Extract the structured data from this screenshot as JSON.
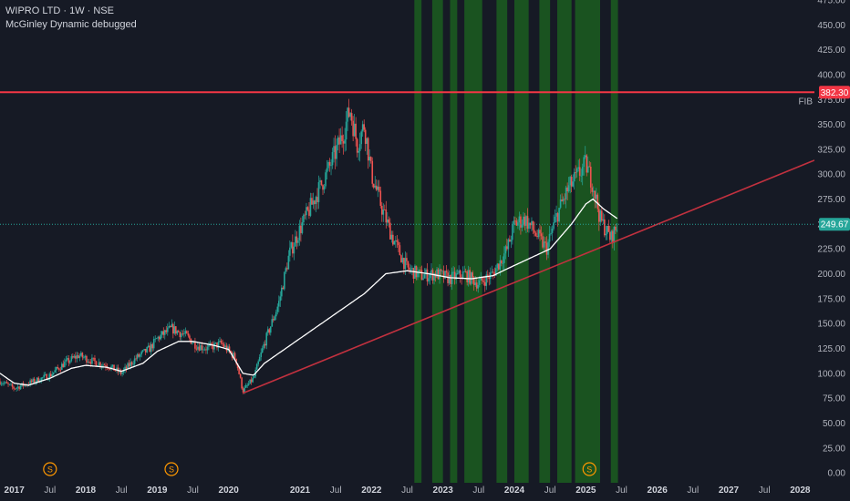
{
  "legend": {
    "symbol_line": "WIPRO LTD · 1W · NSE",
    "indicator": "McGinley Dynamic debugged"
  },
  "colors": {
    "background": "#161a25",
    "up": "#26a69a",
    "down": "#ef5350",
    "mcginley": "#ffffff",
    "trendline": "#c2313f",
    "fib_line": "#f23645",
    "shade": "#1b5e20",
    "price_line": "#26a69a",
    "dividend": "#ff9800"
  },
  "chart_data": {
    "type": "candlestick",
    "symbol": "WIPRO LTD",
    "interval": "1W",
    "exchange": "NSE",
    "ylim": [
      -10,
      475
    ],
    "y_ticks": [
      0,
      25,
      50,
      75,
      100,
      125,
      150,
      175,
      200,
      225,
      250,
      275,
      300,
      325,
      350,
      375,
      400,
      425,
      450,
      475
    ],
    "y_tick_labels": [
      "0.00",
      "25.00",
      "50.00",
      "75.00",
      "100.00",
      "125.00",
      "150.00",
      "175.00",
      "200.00",
      "225.00",
      "250.00",
      "275.00",
      "300.00",
      "325.00",
      "350.00",
      "375.00",
      "400.00",
      "425.00",
      "450.00",
      "475.00"
    ],
    "xlim": [
      2016.8,
      2028.2
    ],
    "x_ticks": [
      2017,
      2017.5,
      2018,
      2018.5,
      2019,
      2019.5,
      2020,
      2021,
      2021.5,
      2022,
      2022.5,
      2023,
      2023.5,
      2024,
      2024.5,
      2025,
      2025.5,
      2026,
      2026.5,
      2027,
      2027.5,
      2028
    ],
    "x_tick_labels": [
      "2017",
      "Jul",
      "2018",
      "Jul",
      "2019",
      "Jul",
      "2020",
      "2021",
      "Jul",
      "2022",
      "Jul",
      "2023",
      "Jul",
      "2024",
      "Jul",
      "2025",
      "Jul",
      "2026",
      "Jul",
      "2027",
      "Jul",
      "2028"
    ],
    "x_tick_year": [
      true,
      false,
      true,
      false,
      true,
      false,
      true,
      true,
      false,
      true,
      false,
      true,
      false,
      true,
      false,
      true,
      false,
      true,
      false,
      true,
      false,
      true
    ],
    "price_path": [
      [
        2016.8,
        92
      ],
      [
        2017.0,
        85
      ],
      [
        2017.2,
        90
      ],
      [
        2017.5,
        98
      ],
      [
        2017.7,
        110
      ],
      [
        2017.9,
        118
      ],
      [
        2018.1,
        112
      ],
      [
        2018.3,
        108
      ],
      [
        2018.5,
        100
      ],
      [
        2018.7,
        115
      ],
      [
        2018.9,
        125
      ],
      [
        2019.0,
        135
      ],
      [
        2019.2,
        145
      ],
      [
        2019.4,
        138
      ],
      [
        2019.55,
        128
      ],
      [
        2019.7,
        125
      ],
      [
        2019.9,
        130
      ],
      [
        2020.1,
        115
      ],
      [
        2020.2,
        82
      ],
      [
        2020.35,
        95
      ],
      [
        2020.5,
        130
      ],
      [
        2020.7,
        170
      ],
      [
        2020.85,
        220
      ],
      [
        2021.0,
        245
      ],
      [
        2021.2,
        275
      ],
      [
        2021.4,
        305
      ],
      [
        2021.6,
        340
      ],
      [
        2021.7,
        365
      ],
      [
        2021.8,
        330
      ],
      [
        2021.9,
        350
      ],
      [
        2022.0,
        300
      ],
      [
        2022.15,
        265
      ],
      [
        2022.3,
        235
      ],
      [
        2022.5,
        205
      ],
      [
        2022.7,
        198
      ],
      [
        2022.9,
        200
      ],
      [
        2023.1,
        195
      ],
      [
        2023.3,
        200
      ],
      [
        2023.5,
        190
      ],
      [
        2023.7,
        200
      ],
      [
        2023.9,
        225
      ],
      [
        2024.0,
        250
      ],
      [
        2024.15,
        255
      ],
      [
        2024.3,
        240
      ],
      [
        2024.45,
        225
      ],
      [
        2024.6,
        260
      ],
      [
        2024.75,
        285
      ],
      [
        2024.9,
        300
      ],
      [
        2025.0,
        310
      ],
      [
        2025.1,
        290
      ],
      [
        2025.2,
        255
      ],
      [
        2025.35,
        235
      ],
      [
        2025.45,
        249.67
      ]
    ],
    "mcginley_dynamic": [
      [
        2016.8,
        100
      ],
      [
        2017.0,
        90
      ],
      [
        2017.2,
        88
      ],
      [
        2017.5,
        95
      ],
      [
        2017.8,
        105
      ],
      [
        2018.0,
        108
      ],
      [
        2018.3,
        106
      ],
      [
        2018.5,
        102
      ],
      [
        2018.8,
        110
      ],
      [
        2019.0,
        122
      ],
      [
        2019.3,
        132
      ],
      [
        2019.5,
        132
      ],
      [
        2019.8,
        128
      ],
      [
        2020.0,
        124
      ],
      [
        2020.2,
        100
      ],
      [
        2020.35,
        98
      ],
      [
        2020.5,
        110
      ],
      [
        2021.0,
        135
      ],
      [
        2021.5,
        160
      ],
      [
        2021.9,
        180
      ],
      [
        2022.2,
        200
      ],
      [
        2022.5,
        203
      ],
      [
        2022.8,
        200
      ],
      [
        2023.1,
        196
      ],
      [
        2023.4,
        195
      ],
      [
        2023.7,
        198
      ],
      [
        2023.9,
        205
      ],
      [
        2024.2,
        215
      ],
      [
        2024.5,
        225
      ],
      [
        2024.8,
        250
      ],
      [
        2025.0,
        270
      ],
      [
        2025.1,
        275
      ],
      [
        2025.25,
        265
      ],
      [
        2025.45,
        255
      ]
    ],
    "trendline": {
      "start": [
        2020.2,
        80
      ],
      "end": [
        2028.2,
        314
      ]
    },
    "fib_level": {
      "label": "FIB",
      "value": 382.3,
      "value_label": "382.30"
    },
    "last_price": {
      "value": 249.67,
      "value_label": "249.67"
    },
    "shaded_ranges": [
      [
        2022.6,
        2022.7
      ],
      [
        2022.85,
        2023.0
      ],
      [
        2023.1,
        2023.2
      ],
      [
        2023.3,
        2023.55
      ],
      [
        2023.75,
        2023.9
      ],
      [
        2024.0,
        2024.2
      ],
      [
        2024.35,
        2024.5
      ],
      [
        2024.6,
        2024.8
      ],
      [
        2024.85,
        2025.2
      ],
      [
        2025.35,
        2025.45
      ]
    ],
    "dividend_markers": [
      {
        "x": 2017.5,
        "label": "S"
      },
      {
        "x": 2019.2,
        "label": "S"
      },
      {
        "x": 2025.05,
        "label": "S"
      }
    ]
  }
}
